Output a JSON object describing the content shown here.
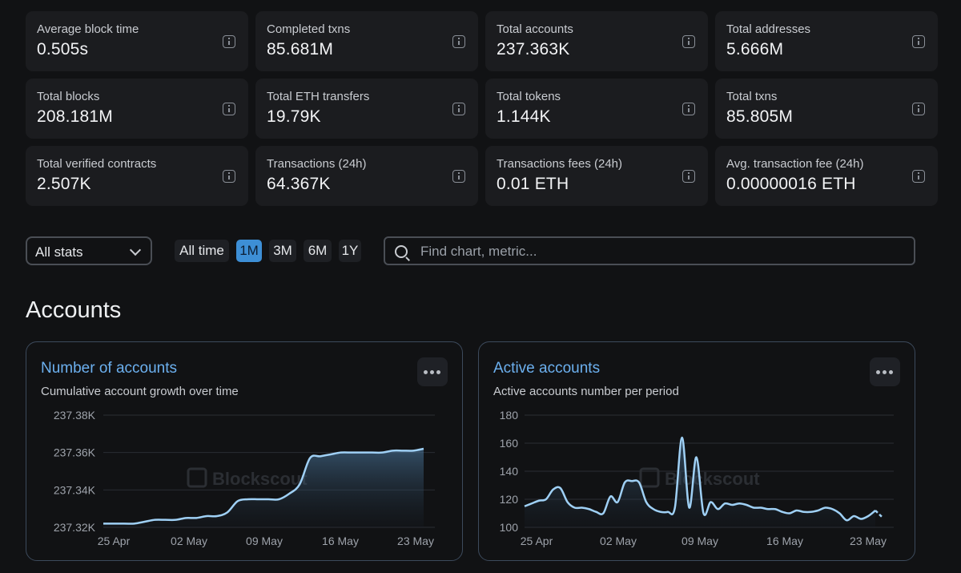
{
  "stats": [
    {
      "label": "Average block time",
      "value": "0.505s"
    },
    {
      "label": "Completed txns",
      "value": "85.681M"
    },
    {
      "label": "Total accounts",
      "value": "237.363K"
    },
    {
      "label": "Total addresses",
      "value": "5.666M"
    },
    {
      "label": "Total blocks",
      "value": "208.181M"
    },
    {
      "label": "Total ETH transfers",
      "value": "19.79K"
    },
    {
      "label": "Total tokens",
      "value": "1.144K"
    },
    {
      "label": "Total txns",
      "value": "85.805M"
    },
    {
      "label": "Total verified contracts",
      "value": "2.507K"
    },
    {
      "label": "Transactions (24h)",
      "value": "64.367K"
    },
    {
      "label": "Transactions fees (24h)",
      "value": "0.01 ETH"
    },
    {
      "label": "Avg. transaction fee (24h)",
      "value": "0.00000016 ETH"
    }
  ],
  "filters": {
    "select_value": "All stats",
    "ranges": [
      "All time",
      "1M",
      "3M",
      "6M",
      "1Y"
    ],
    "active_range": "1M",
    "search_placeholder": "Find chart, metric..."
  },
  "section_title": "Accounts",
  "watermark": "Blockscout",
  "colors": {
    "accent": "#6cb0ef",
    "line": "#9fd0f5",
    "active_range": "#3d8fd6"
  },
  "chart_data": [
    {
      "type": "area",
      "title": "Number of accounts",
      "subtitle": "Cumulative account growth over time",
      "x_ticks": [
        "25 Apr",
        "02 May",
        "09 May",
        "16 May",
        "23 May"
      ],
      "y_ticks": [
        "237.38K",
        "237.36K",
        "237.34K",
        "237.32K"
      ],
      "ylim": [
        237320,
        237380
      ],
      "x": [
        0,
        2,
        3,
        4,
        5,
        6,
        7,
        8,
        9,
        10,
        11,
        12,
        13,
        14,
        15,
        16,
        17,
        18,
        19,
        20,
        21,
        22,
        23,
        24,
        25,
        26,
        27,
        28,
        29,
        30,
        31
      ],
      "values": [
        237322,
        237322,
        237322,
        237323,
        237324,
        237324,
        237324,
        237325,
        237325,
        237326,
        237326,
        237328,
        237334,
        237335,
        237335,
        237335,
        237335,
        237338,
        237343,
        237357,
        237358,
        237359,
        237360,
        237360,
        237360,
        237360,
        237360,
        237361,
        237361,
        237361,
        237362
      ],
      "grid": true
    },
    {
      "type": "area",
      "title": "Active accounts",
      "subtitle": "Active accounts number per period",
      "x_ticks": [
        "25 Apr",
        "02 May",
        "09 May",
        "16 May",
        "23 May"
      ],
      "y_ticks": [
        "180",
        "160",
        "140",
        "120",
        "100"
      ],
      "ylim": [
        100,
        180
      ],
      "x": [
        0,
        1,
        2,
        3,
        4,
        5,
        6,
        7,
        8,
        9,
        10,
        11,
        12,
        13,
        14,
        15,
        16,
        17,
        18,
        19,
        20,
        21,
        22,
        23,
        24,
        25,
        26,
        27,
        28,
        29,
        30,
        31,
        32,
        33,
        34,
        35,
        36,
        37,
        38,
        39,
        40,
        41,
        42,
        43,
        44,
        45,
        46,
        47,
        48,
        49,
        50
      ],
      "values": [
        115,
        117,
        119,
        120,
        127,
        128,
        118,
        114,
        114,
        113,
        111,
        110,
        122,
        118,
        132,
        133,
        132,
        118,
        113,
        111,
        111,
        114,
        164,
        114,
        150,
        110,
        118,
        113,
        117,
        116,
        117,
        116,
        114,
        114,
        113,
        113,
        111,
        110,
        112,
        111,
        111,
        112,
        114,
        113,
        110,
        105,
        108,
        106,
        108,
        112,
        107
      ],
      "projected_last": true,
      "grid": true
    }
  ]
}
